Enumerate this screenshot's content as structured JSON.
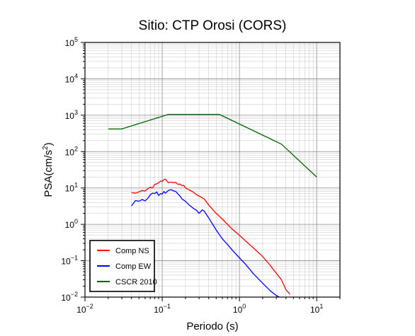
{
  "chart_data": {
    "type": "line",
    "title": "Sitio: CTP Orosi (CORS)",
    "xlabel": "Periodo (s)",
    "ylabel_main": "PSA(cm/s",
    "ylabel_sup": "2",
    "ylabel_end": ")",
    "xscale": "log",
    "yscale": "log",
    "xlim": [
      0.01,
      20
    ],
    "ylim": [
      0.01,
      100000
    ],
    "grid": true,
    "legend_position": "bottom-left",
    "x_tick_labels": [
      {
        "base": "10",
        "exp": "−2"
      },
      {
        "base": "10",
        "exp": "−1"
      },
      {
        "base": "10",
        "exp": "0"
      },
      {
        "base": "10",
        "exp": "1"
      }
    ],
    "y_tick_labels": [
      {
        "base": "10",
        "exp": "−2"
      },
      {
        "base": "10",
        "exp": "−1"
      },
      {
        "base": "10",
        "exp": "0"
      },
      {
        "base": "10",
        "exp": "1"
      },
      {
        "base": "10",
        "exp": "2"
      },
      {
        "base": "10",
        "exp": "3"
      },
      {
        "base": "10",
        "exp": "4"
      },
      {
        "base": "10",
        "exp": "5"
      }
    ],
    "series": [
      {
        "name": "Comp NS",
        "color": "#ff0000",
        "x": [
          0.04,
          0.045,
          0.05,
          0.055,
          0.06,
          0.065,
          0.07,
          0.075,
          0.08,
          0.085,
          0.09,
          0.095,
          0.1,
          0.105,
          0.11,
          0.12,
          0.13,
          0.14,
          0.15,
          0.16,
          0.17,
          0.18,
          0.19,
          0.2,
          0.22,
          0.25,
          0.28,
          0.3,
          0.35,
          0.4,
          0.5,
          0.6,
          0.7,
          0.8,
          1.0,
          1.2,
          1.5,
          2.0,
          2.5,
          3.0,
          3.5,
          4.0,
          4.5
        ],
        "values": [
          7.5,
          7.2,
          7.8,
          8.5,
          8.2,
          9.5,
          10.5,
          10.0,
          12.5,
          13.0,
          14.0,
          15.5,
          15.0,
          17.0,
          17.5,
          14.0,
          14.5,
          14.0,
          14.2,
          12.5,
          12.8,
          11.5,
          11.8,
          10.0,
          9.0,
          7.8,
          6.5,
          6.0,
          5.0,
          3.4,
          2.0,
          1.4,
          1.0,
          0.75,
          0.5,
          0.35,
          0.23,
          0.13,
          0.075,
          0.045,
          0.03,
          0.016,
          0.012
        ]
      },
      {
        "name": "Comp EW",
        "color": "#0000ff",
        "x": [
          0.04,
          0.045,
          0.05,
          0.055,
          0.06,
          0.065,
          0.07,
          0.075,
          0.08,
          0.085,
          0.09,
          0.095,
          0.1,
          0.105,
          0.11,
          0.12,
          0.13,
          0.14,
          0.15,
          0.16,
          0.17,
          0.18,
          0.2,
          0.22,
          0.25,
          0.28,
          0.3,
          0.33,
          0.35,
          0.4,
          0.5,
          0.6,
          0.7,
          0.8,
          1.0,
          1.2,
          1.5,
          2.0,
          2.5,
          3.0,
          3.3
        ],
        "values": [
          3.2,
          4.5,
          4.3,
          4.8,
          4.4,
          5.2,
          6.5,
          7.2,
          7.0,
          7.8,
          6.2,
          7.0,
          6.8,
          8.0,
          7.2,
          8.5,
          9.0,
          8.3,
          8.0,
          6.8,
          6.0,
          5.0,
          4.3,
          3.5,
          2.8,
          2.4,
          2.0,
          2.5,
          2.3,
          1.5,
          0.7,
          0.4,
          0.28,
          0.2,
          0.12,
          0.08,
          0.045,
          0.024,
          0.015,
          0.011,
          0.01
        ]
      },
      {
        "name": "CSCR 2010",
        "color": "#006400",
        "x": [
          0.02,
          0.03,
          0.12,
          0.55,
          3.5,
          10.0
        ],
        "values": [
          420,
          420,
          1050,
          1050,
          160,
          20
        ]
      }
    ]
  }
}
